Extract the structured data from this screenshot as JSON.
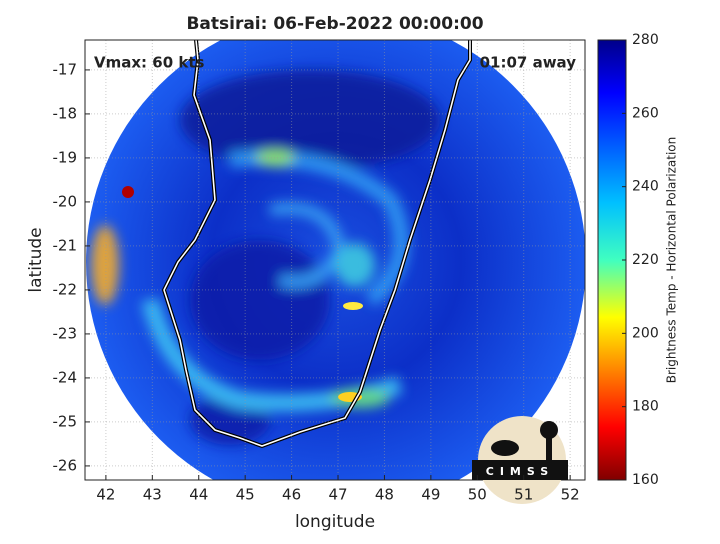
{
  "chart_data": {
    "type": "map",
    "title": "Batsirai: 06-Feb-2022 00:00:00",
    "annotations": [
      "Vmax: 60 kts",
      "01:07 away"
    ],
    "xlabel": "longitude",
    "ylabel": "latitude",
    "xlim": [
      41.55,
      52.32
    ],
    "xticks": [
      42,
      43,
      44,
      45,
      46,
      47,
      48,
      49,
      50,
      51,
      52
    ],
    "ylim": [
      -26.32,
      -16.32
    ],
    "yticks": [
      -26,
      -25,
      -24,
      -23,
      -22,
      -21,
      -20,
      -19,
      -18,
      -17
    ],
    "grid": true,
    "colorbar": {
      "label": "Brightness Temp - Horizontal Polarization",
      "lim": [
        160,
        280
      ],
      "ticks": [
        160,
        180,
        200,
        220,
        240,
        260,
        280
      ],
      "colormap": "jet"
    },
    "logo": "CIMSS"
  }
}
